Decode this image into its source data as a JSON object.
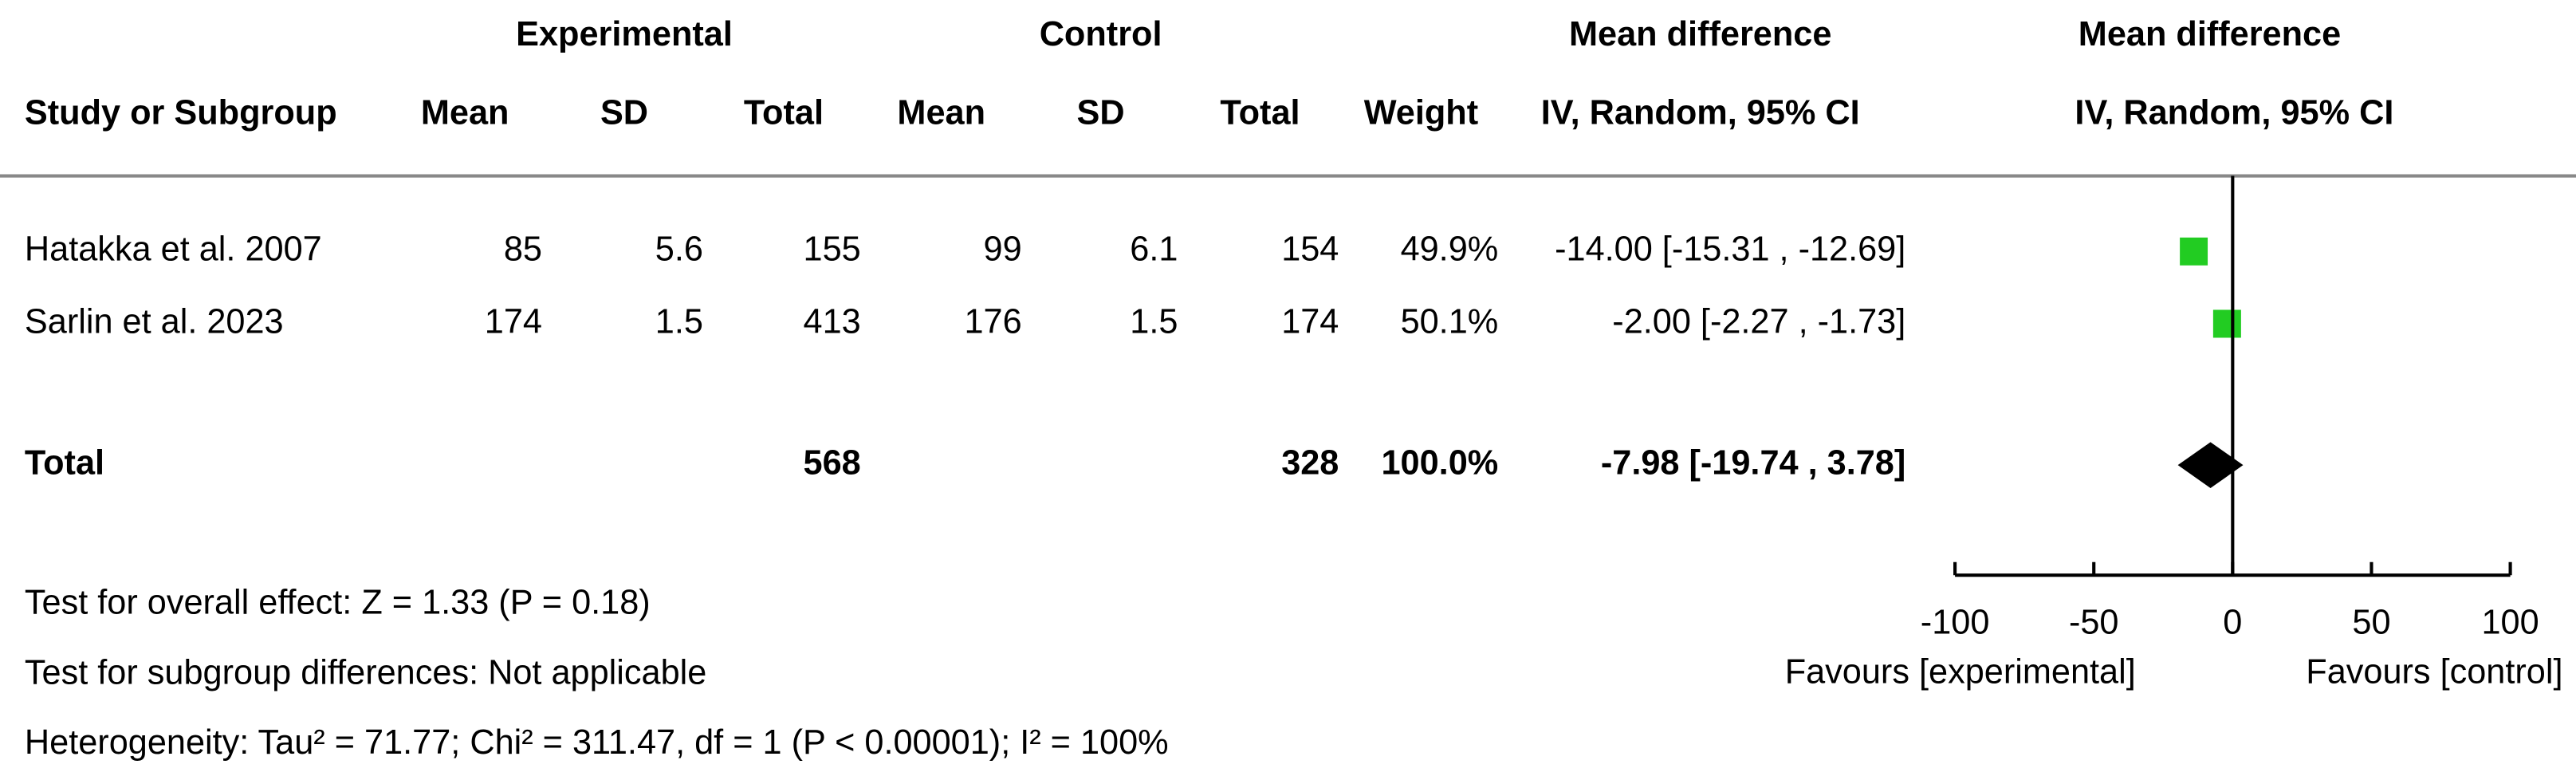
{
  "chart_data": {
    "type": "forest",
    "group_headers": [
      "Experimental",
      "Control",
      "Mean difference",
      "Mean difference"
    ],
    "columns": [
      "Study or Subgroup",
      "Mean",
      "SD",
      "Total",
      "Mean",
      "SD",
      "Total",
      "Weight",
      "IV, Random, 95% CI",
      "IV, Random, 95% CI"
    ],
    "rows": [
      {
        "study": "Hatakka et al. 2007",
        "exp_mean": 85,
        "exp_sd": 5.6,
        "exp_total": 155,
        "ctl_mean": 99,
        "ctl_sd": 6.1,
        "ctl_total": 154,
        "weight": 49.9,
        "weight_label": "49.9%",
        "md": -14.0,
        "ci_low": -15.31,
        "ci_high": -12.69,
        "md_label": "-14.00 [-15.31 , -12.69]"
      },
      {
        "study": "Sarlin et al. 2023",
        "exp_mean": 174,
        "exp_sd": 1.5,
        "exp_total": 413,
        "ctl_mean": 176,
        "ctl_sd": 1.5,
        "ctl_total": 174,
        "weight": 50.1,
        "weight_label": "50.1%",
        "md": -2.0,
        "ci_low": -2.27,
        "ci_high": -1.73,
        "md_label": "-2.00 [-2.27 , -1.73]"
      }
    ],
    "total": {
      "label": "Total",
      "exp_total": 568,
      "ctl_total": 328,
      "weight_label": "100.0%",
      "md": -7.98,
      "ci_low": -19.74,
      "ci_high": 3.78,
      "md_label": "-7.98 [-19.74 , 3.78]"
    },
    "footnotes": [
      "Test for overall effect: Z = 1.33 (P = 0.18)",
      "Test for subgroup differences: Not applicable",
      "Heterogeneity: Tau² = 71.77; Chi² = 311.47, df = 1 (P < 0.00001); I² = 100%"
    ],
    "xlim": [
      -100,
      100
    ],
    "xticks": [
      -100,
      -50,
      0,
      50,
      100
    ],
    "favours": [
      "Favours [experimental]",
      "Favours [control]"
    ],
    "marker_color": "#22cc22"
  }
}
